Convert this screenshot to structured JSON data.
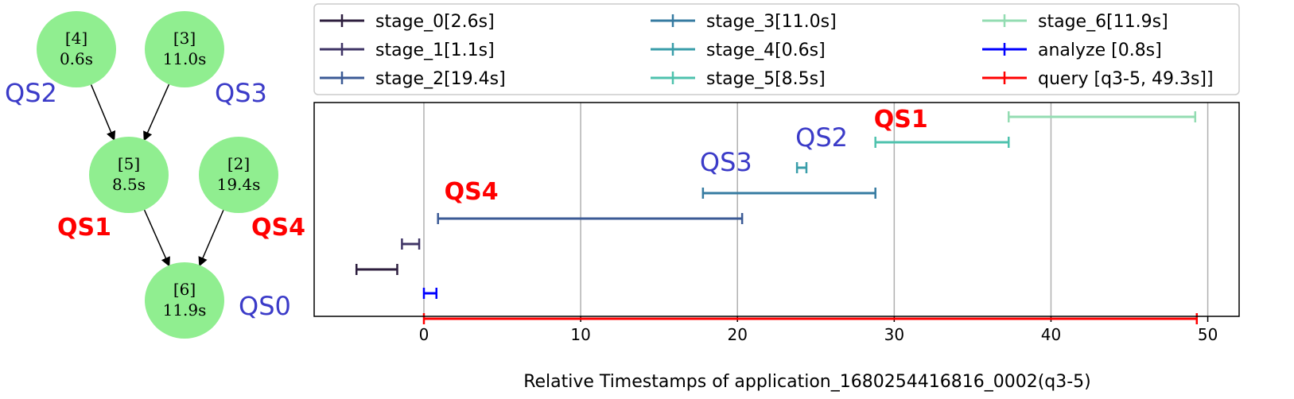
{
  "dag": {
    "nodes": [
      {
        "id": "4",
        "label": "[4]",
        "duration": "0.6s"
      },
      {
        "id": "3",
        "label": "[3]",
        "duration": "11.0s"
      },
      {
        "id": "5",
        "label": "[5]",
        "duration": "8.5s"
      },
      {
        "id": "2",
        "label": "[2]",
        "duration": "19.4s"
      },
      {
        "id": "6",
        "label": "[6]",
        "duration": "11.9s"
      }
    ],
    "edges": [
      [
        "4",
        "5"
      ],
      [
        "3",
        "5"
      ],
      [
        "5",
        "6"
      ],
      [
        "2",
        "6"
      ]
    ],
    "qs_labels": [
      {
        "text": "QS2",
        "color": "#3b3bc8",
        "style": "normal"
      },
      {
        "text": "QS3",
        "color": "#3b3bc8",
        "style": "normal"
      },
      {
        "text": "QS1",
        "color": "#ff0000",
        "style": "bold"
      },
      {
        "text": "QS4",
        "color": "#ff0000",
        "style": "bold"
      },
      {
        "text": "QS0",
        "color": "#3b3bc8",
        "style": "normal"
      }
    ],
    "node_color": "#90ee90"
  },
  "chart_data": {
    "type": "timeline",
    "xlabel": "Relative Timestamps of application_1680254416816_0002(q3-5)",
    "xlim": [
      -7,
      52
    ],
    "xticks": [
      0,
      10,
      20,
      30,
      40,
      50
    ],
    "grid": "x",
    "legend": {
      "placement": "top",
      "columns": 3
    },
    "series": [
      {
        "name": "stage_0[2.6s]",
        "color": "#2d1e3e",
        "start": -4.3,
        "end": -1.7
      },
      {
        "name": "stage_1[1.1s]",
        "color": "#3f3566",
        "start": -1.4,
        "end": -0.3
      },
      {
        "name": "stage_2[19.4s]",
        "color": "#3b5a95",
        "start": 0.9,
        "end": 20.3
      },
      {
        "name": "stage_3[11.0s]",
        "color": "#367ba1",
        "start": 17.8,
        "end": 28.8
      },
      {
        "name": "stage_4[0.6s]",
        "color": "#3a9eaa",
        "start": 23.8,
        "end": 24.4
      },
      {
        "name": "stage_5[8.5s]",
        "color": "#4ec2ad",
        "start": 28.8,
        "end": 37.3
      },
      {
        "name": "stage_6[11.9s]",
        "color": "#93dcb2",
        "start": 37.3,
        "end": 49.2
      },
      {
        "name": "analyze [0.8s]",
        "color": "#0000ff",
        "start": 0.0,
        "end": 0.8
      },
      {
        "name": "query [q3-5, 49.3s]]",
        "color": "#ff0000",
        "start": 0.0,
        "end": 49.3
      }
    ],
    "annotations": [
      {
        "text": "QS1",
        "color": "#ff0000",
        "style": "bold",
        "x": 28.7,
        "row": 6
      },
      {
        "text": "QS2",
        "color": "#3b3bc8",
        "style": "normal",
        "x": 23.7,
        "row": 5
      },
      {
        "text": "QS3",
        "color": "#3b3bc8",
        "style": "normal",
        "x": 17.6,
        "row": 3
      },
      {
        "text": "QS4",
        "color": "#ff0000",
        "style": "bold",
        "x": 1.3,
        "row": 2
      }
    ]
  }
}
